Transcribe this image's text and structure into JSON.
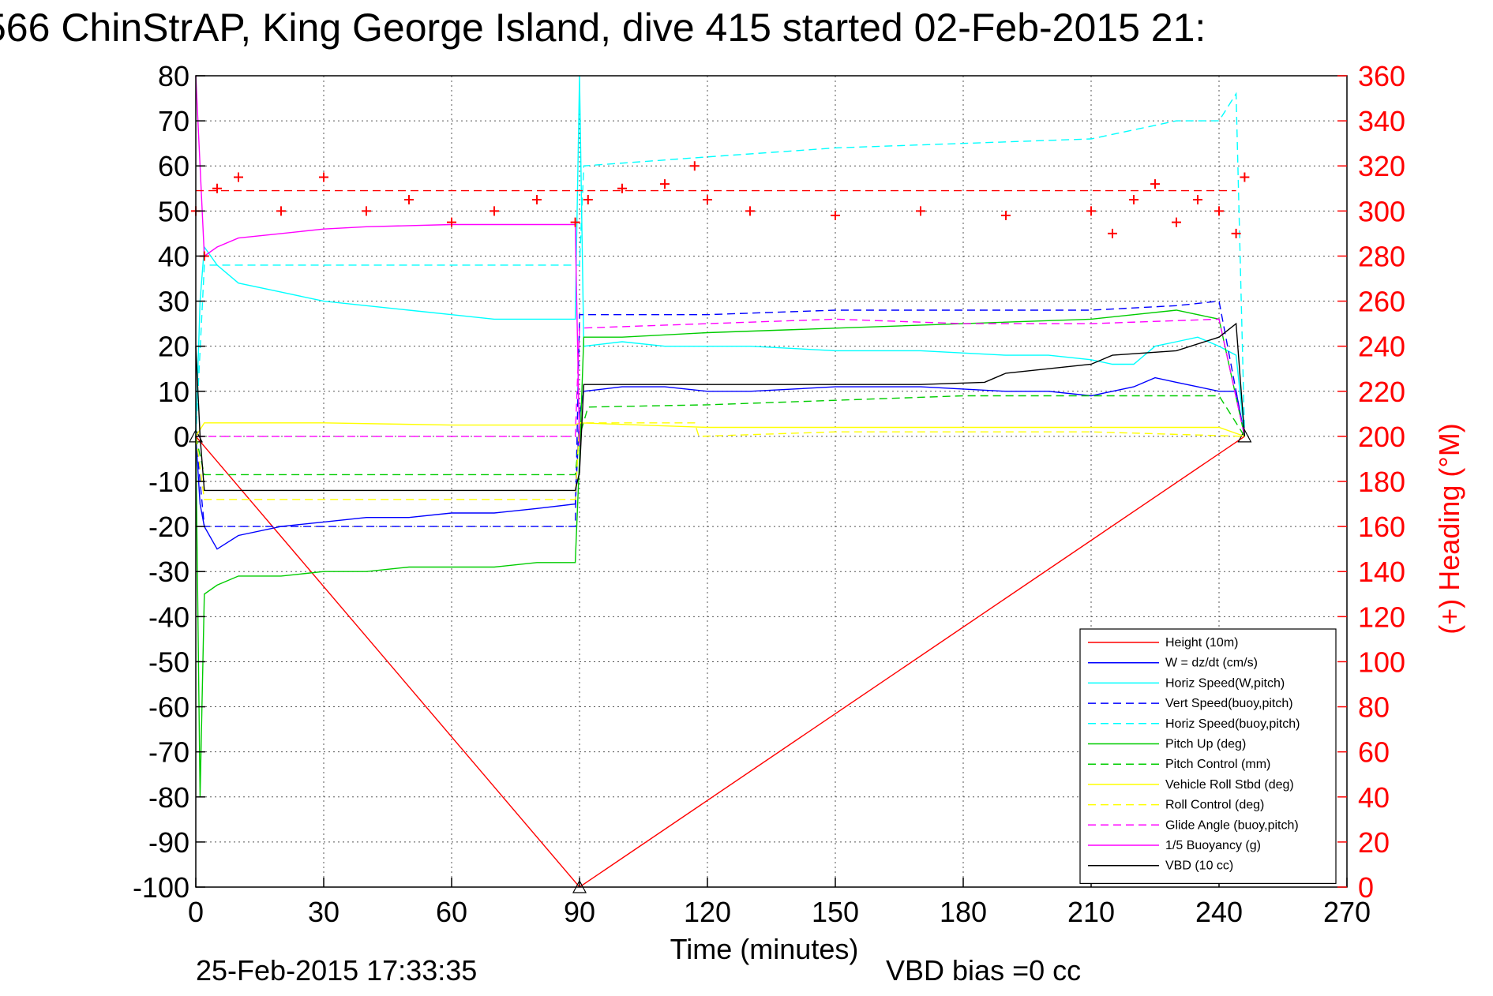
{
  "chart_data": {
    "type": "line",
    "title": "566 ChinStrAP, King George Island, dive 415 started 02-Feb-2015 21:",
    "xlabel": "Time (minutes)",
    "ylabel_right": "(+) Heading (°M)",
    "xlim": [
      0,
      270
    ],
    "ylim": [
      -100,
      80
    ],
    "ylim_right": [
      0,
      360
    ],
    "x_ticks": [
      "0",
      "30",
      "60",
      "90",
      "120",
      "150",
      "180",
      "210",
      "240",
      "270"
    ],
    "y_ticks": [
      "80",
      "70",
      "60",
      "50",
      "40",
      "30",
      "20",
      "10",
      "0",
      "-10",
      "-20",
      "-30",
      "-40",
      "-50",
      "-60",
      "-70",
      "-80",
      "-90",
      "-100"
    ],
    "y_ticks_right": [
      "360",
      "340",
      "320",
      "300",
      "280",
      "260",
      "240",
      "220",
      "200",
      "180",
      "160",
      "140",
      "120",
      "100",
      "80",
      "60",
      "40",
      "20",
      "0"
    ],
    "grid": true,
    "legend_position": "bottom-right",
    "footer_left": "25-Feb-2015 17:33:35",
    "footer_right": "VBD bias =0 cc",
    "series": [
      {
        "name": "Height (10m)",
        "color": "#ff0000",
        "style": "solid",
        "marker": "triangle",
        "x": [
          0,
          90,
          246
        ],
        "y": [
          0,
          -100,
          0
        ]
      },
      {
        "name": "W = dz/dt (cm/s)",
        "color": "#0000ff",
        "style": "solid",
        "x": [
          0,
          1,
          2,
          5,
          10,
          20,
          30,
          40,
          50,
          60,
          70,
          80,
          89,
          90,
          91,
          100,
          110,
          120,
          130,
          150,
          170,
          190,
          200,
          210,
          215,
          220,
          225,
          230,
          235,
          240,
          244,
          246
        ],
        "y": [
          0,
          -15,
          -20,
          -25,
          -22,
          -20,
          -19,
          -18,
          -18,
          -17,
          -17,
          -16,
          -15,
          5,
          10,
          11,
          11,
          10,
          10,
          11,
          11,
          10,
          10,
          9,
          10,
          11,
          13,
          12,
          11,
          10,
          10,
          0
        ]
      },
      {
        "name": "Horiz Speed(W,pitch)",
        "color": "#00ffff",
        "style": "solid",
        "x": [
          0,
          1,
          2,
          5,
          10,
          20,
          30,
          40,
          50,
          60,
          70,
          80,
          89,
          90,
          91,
          100,
          110,
          120,
          130,
          150,
          170,
          190,
          200,
          210,
          215,
          220,
          225,
          230,
          235,
          240,
          244,
          246
        ],
        "y": [
          0,
          30,
          42,
          38,
          34,
          32,
          30,
          29,
          28,
          27,
          26,
          26,
          26,
          80,
          20,
          21,
          20,
          20,
          20,
          19,
          19,
          18,
          18,
          17,
          16,
          16,
          20,
          21,
          22,
          20,
          18,
          0
        ]
      },
      {
        "name": "Vert Speed(buoy,pitch)",
        "color": "#0000ff",
        "style": "dashed",
        "x": [
          0,
          2,
          30,
          60,
          89,
          90,
          95,
          120,
          150,
          180,
          210,
          230,
          240,
          246
        ],
        "y": [
          0,
          -20,
          -20,
          -20,
          -20,
          27,
          27,
          27,
          28,
          28,
          28,
          29,
          30,
          0
        ]
      },
      {
        "name": "Horiz Speed(buoy,pitch)",
        "color": "#00ffff",
        "style": "dashed",
        "x": [
          0,
          2,
          90,
          91,
          120,
          150,
          180,
          210,
          230,
          240,
          244,
          246
        ],
        "y": [
          0,
          38,
          38,
          60,
          62,
          64,
          65,
          66,
          70,
          70,
          76,
          0
        ]
      },
      {
        "name": "Pitch Up (deg)",
        "color": "#00cc00",
        "style": "solid",
        "x": [
          0,
          1,
          2,
          5,
          10,
          20,
          30,
          40,
          50,
          60,
          70,
          80,
          89,
          90,
          91,
          100,
          120,
          150,
          180,
          210,
          220,
          230,
          240,
          246
        ],
        "y": [
          0,
          -80,
          -35,
          -33,
          -31,
          -31,
          -30,
          -30,
          -29,
          -29,
          -29,
          -28,
          -28,
          -5,
          22,
          22,
          23,
          24,
          25,
          26,
          27,
          28,
          26,
          0
        ]
      },
      {
        "name": "Pitch Control (mm)",
        "color": "#00cc00",
        "style": "dashed",
        "x": [
          0,
          2,
          89,
          90,
          92,
          120,
          150,
          180,
          210,
          240,
          246
        ],
        "y": [
          0,
          -8.5,
          -8.5,
          0,
          6.5,
          7,
          8,
          9,
          9,
          9,
          0
        ]
      },
      {
        "name": "Vehicle Roll Stbd (deg)",
        "color": "#ffff00",
        "style": "solid",
        "x": [
          0,
          2,
          30,
          60,
          89,
          90,
          120,
          150,
          180,
          210,
          240,
          246
        ],
        "y": [
          0,
          3,
          3,
          2.5,
          2.5,
          3,
          2,
          2,
          2,
          2,
          2,
          0
        ]
      },
      {
        "name": "Roll Control (deg)",
        "color": "#ffff00",
        "style": "dashed",
        "x": [
          0,
          2,
          30,
          60,
          89,
          90,
          117,
          118,
          150,
          180,
          210,
          246
        ],
        "y": [
          0,
          -14,
          -14,
          -14,
          -14,
          3,
          3,
          0,
          1,
          1,
          1,
          0
        ]
      },
      {
        "name": "Glide Angle (buoy,pitch)",
        "color": "#ff00ff",
        "style": "dashed",
        "x": [
          0,
          2,
          89,
          90,
          120,
          150,
          180,
          210,
          240,
          246
        ],
        "y": [
          0,
          0,
          0,
          24,
          25,
          26,
          25,
          25,
          26,
          0
        ]
      },
      {
        "name": "1/5 Buoyancy (g)",
        "color": "#ff00ff",
        "style": "solid",
        "x": [
          0,
          1,
          2,
          5,
          10,
          20,
          30,
          40,
          60,
          89,
          90
        ],
        "y": [
          80,
          60,
          40,
          42,
          44,
          45,
          46,
          46.5,
          47,
          47,
          -2
        ]
      },
      {
        "name": "VBD (10 cc)",
        "color": "#000000",
        "style": "solid",
        "x": [
          0,
          1,
          2,
          89,
          90,
          91,
          120,
          150,
          170,
          185,
          190,
          200,
          210,
          215,
          230,
          240,
          244,
          246
        ],
        "y": [
          20,
          0,
          -12,
          -12,
          -8,
          11.5,
          11.5,
          11.5,
          11.5,
          12,
          14,
          15,
          16,
          18,
          19,
          22,
          25,
          0
        ]
      },
      {
        "name": "Heading",
        "color": "#ff0000",
        "style": "markers",
        "marker": "plus",
        "axis": "right",
        "x": [
          0,
          2,
          5,
          10,
          20,
          30,
          40,
          50,
          60,
          70,
          80,
          89,
          92,
          100,
          110,
          117,
          120,
          130,
          150,
          170,
          190,
          210,
          215,
          220,
          225,
          230,
          235,
          240,
          244,
          246
        ],
        "y": [
          300,
          280,
          310,
          315,
          300,
          315,
          300,
          305,
          295,
          300,
          305,
          295,
          305,
          310,
          312,
          320,
          305,
          300,
          298,
          300,
          298,
          300,
          290,
          305,
          312,
          295,
          305,
          300,
          290,
          315
        ]
      },
      {
        "name": "Heading target",
        "color": "#ff0000",
        "style": "dashed",
        "axis": "right",
        "x": [
          0,
          244
        ],
        "y": [
          309,
          309
        ]
      }
    ]
  }
}
